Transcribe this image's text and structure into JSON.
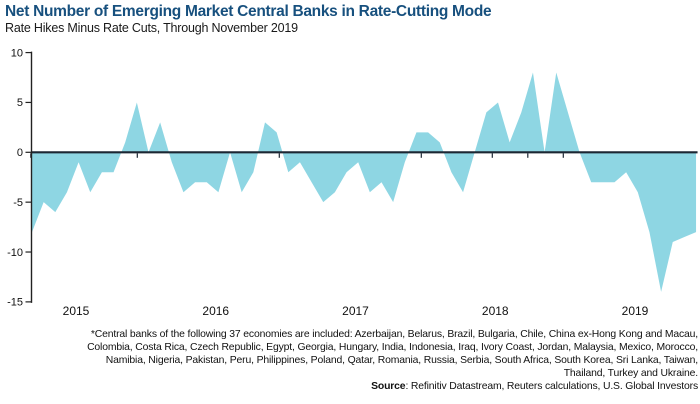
{
  "title": "Net Number of Emerging Market Central Banks in Rate-Cutting Mode",
  "subtitle": "Rate Hikes Minus Rate Cuts, Through November 2019",
  "chart_data": {
    "type": "area",
    "title": "Net Number of Emerging Market Central Banks in Rate-Cutting Mode",
    "subtitle": "Rate Hikes Minus Rate Cuts, Through November 2019",
    "x": [
      "Feb 2015",
      "Mar 2015",
      "Apr 2015",
      "May 2015",
      "Jun 2015",
      "Jul 2015",
      "Aug 2015",
      "Sep 2015",
      "Oct 2015",
      "Nov 2015",
      "Dec 2015",
      "Jan 2016",
      "Feb 2016",
      "Mar 2016",
      "Apr 2016",
      "May 2016",
      "Jun 2016",
      "Jul 2016",
      "Aug 2016",
      "Sep 2016",
      "Oct 2016",
      "Nov 2016",
      "Dec 2016",
      "Jan 2017",
      "Feb 2017",
      "Mar 2017",
      "Apr 2017",
      "May 2017",
      "Jun 2017",
      "Jul 2017",
      "Aug 2017",
      "Sep 2017",
      "Oct 2017",
      "Nov 2017",
      "Dec 2017",
      "Jan 2018",
      "Feb 2018",
      "Mar 2018",
      "Apr 2018",
      "May 2018",
      "Jun 2018",
      "Jul 2018",
      "Aug 2018",
      "Sep 2018",
      "Oct 2018",
      "Nov 2018",
      "Dec 2018",
      "Jan 2019",
      "Feb 2019",
      "Mar 2019",
      "Apr 2019",
      "May 2019",
      "Jun 2019",
      "Jul 2019",
      "Aug 2019",
      "Sep 2019",
      "Oct 2019",
      "Nov 2019"
    ],
    "values": [
      -8,
      -5,
      -6,
      -4,
      -1,
      -4,
      -2,
      -2,
      1,
      5,
      0,
      3,
      -1,
      -4,
      -3,
      -3,
      -4,
      0,
      -4,
      -2,
      3,
      2,
      -2,
      -1,
      -3,
      -5,
      -4,
      -2,
      -1,
      -4,
      -3,
      -5,
      -1,
      2,
      2,
      1,
      -2,
      -4,
      0,
      4,
      5,
      1,
      4,
      8,
      0,
      8,
      4,
      0,
      -3,
      -3,
      -3,
      -2,
      -4,
      -8,
      -14,
      -9,
      -8.5,
      -8
    ],
    "ylim": [
      -15,
      10
    ],
    "yticks": [
      10,
      5,
      0,
      -5,
      -10,
      -15
    ],
    "x_axis_year_labels": [
      "2015",
      "2016",
      "2017",
      "2018",
      "2019"
    ],
    "xlabel": "",
    "ylabel": "",
    "grid": false,
    "legend": "none",
    "fill_color": "#8ed6e3",
    "axis_color": "#1c2733",
    "baseline": 0
  },
  "footnote": {
    "lines": [
      "*Central banks of the following 37 economies are included: Azerbaijan, Belarus, Brazil, Bulgaria, Chile, China ex-Hong Kong and Macau,",
      "Colombia, Costa Rica, Czech Republic, Egypt, Georgia, Hungary, India, Indonesia, Iraq, Ivory Coast, Jordan, Malaysia, Mexico, Morocco,",
      "Namibia, Nigeria, Pakistan, Peru, Philippines, Poland, Qatar, Romania, Russia, Serbia, South Africa, South Korea, Sri Lanka, Taiwan,",
      "Thailand, Turkey and Ukraine."
    ],
    "source_label": "Source",
    "source_text": ": Refinitiv Datastream, Reuters calculations, U.S. Global Investors"
  }
}
